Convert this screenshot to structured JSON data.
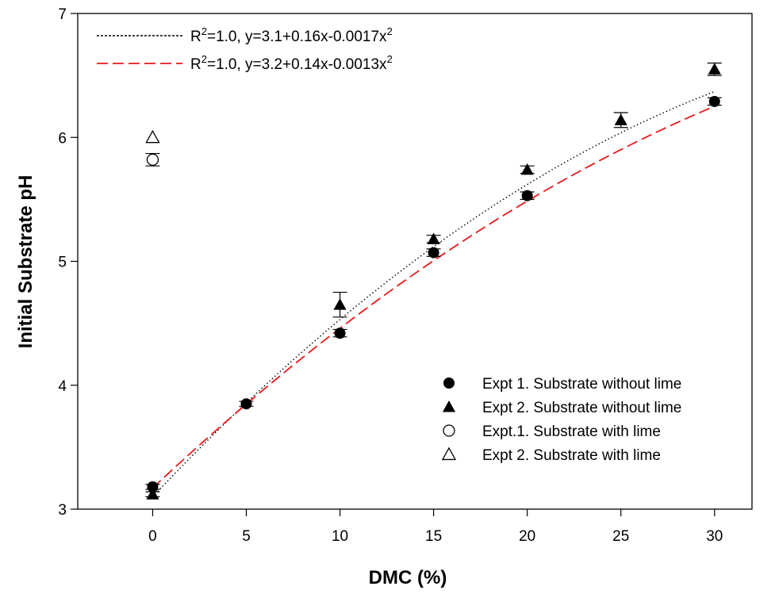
{
  "chart_data": {
    "type": "scatter",
    "xlabel": "DMC (%)",
    "ylabel": "Initial Substrate pH",
    "xlim": [
      -4,
      32
    ],
    "ylim": [
      3,
      7
    ],
    "x_ticks": [
      "0",
      "5",
      "10",
      "15",
      "20",
      "25",
      "30"
    ],
    "y_ticks": [
      "3",
      "4",
      "5",
      "6",
      "7"
    ],
    "grid": false,
    "series": [
      {
        "name": "Expt 1. Substrate without lime",
        "marker": "filled-circle",
        "color": "#000000",
        "points": [
          {
            "x": 0,
            "y": 3.18,
            "err": 0.02
          },
          {
            "x": 5,
            "y": 3.85,
            "err": 0.02
          },
          {
            "x": 10,
            "y": 4.42,
            "err": 0.03
          },
          {
            "x": 15,
            "y": 5.07,
            "err": 0.03
          },
          {
            "x": 20,
            "y": 5.53,
            "err": 0.03
          },
          {
            "x": 30,
            "y": 6.29,
            "err": 0.03
          }
        ]
      },
      {
        "name": "Expt 2. Substrate without lime",
        "marker": "filled-triangle",
        "color": "#000000",
        "points": [
          {
            "x": 0,
            "y": 3.12,
            "err": 0.02
          },
          {
            "x": 10,
            "y": 4.65,
            "err": 0.1
          },
          {
            "x": 15,
            "y": 5.18,
            "err": 0.03
          },
          {
            "x": 20,
            "y": 5.74,
            "err": 0.03
          },
          {
            "x": 25,
            "y": 6.14,
            "err": 0.06
          },
          {
            "x": 30,
            "y": 6.55,
            "err": 0.05
          }
        ]
      },
      {
        "name": "Expt.1. Substrate with  lime",
        "marker": "open-circle",
        "color": "#000000",
        "points": [
          {
            "x": 0,
            "y": 5.82,
            "err": 0.05
          }
        ]
      },
      {
        "name": "Expt 2. Substrate with  lime",
        "marker": "open-triangle",
        "color": "#000000",
        "points": [
          {
            "x": 0,
            "y": 6.0,
            "err": 0
          }
        ]
      }
    ],
    "fits": [
      {
        "label_r": "R",
        "label_rest": "=1.0, y=3.1+0.16x-0.0017x",
        "sup": "2",
        "style": "dotted",
        "color": "#000000",
        "coef": [
          3.1,
          0.16,
          -0.0017
        ]
      },
      {
        "label_r": "R",
        "label_rest": "=1.0, y=3.2+0.14x-0.0013x",
        "sup": "2",
        "style": "dashed",
        "color": "#e8191b",
        "coef": [
          3.17,
          0.142,
          -0.00131
        ]
      }
    ],
    "fit_legend_position": "top-left",
    "legend_position": "bottom-right"
  }
}
